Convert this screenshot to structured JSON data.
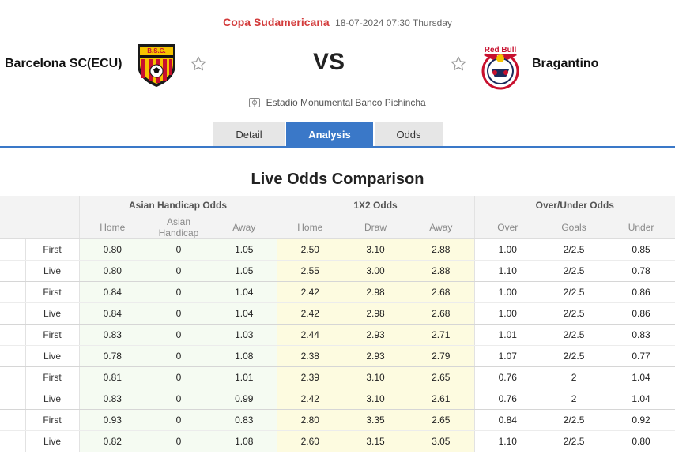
{
  "match": {
    "competition": "Copa Sudamericana",
    "datetime": "18-07-2024 07:30 Thursday",
    "home_team": "Barcelona SC(ECU)",
    "away_team": "Bragantino",
    "vs": "VS",
    "venue": "Estadio Monumental Banco Pichincha",
    "home_logo_text": "B.S.C.",
    "away_logo_text": "RedBull BRAGANTINO"
  },
  "tabs": [
    {
      "label": "Detail"
    },
    {
      "label": "Analysis",
      "active": true
    },
    {
      "label": "Odds"
    }
  ],
  "section_title": "Live Odds Comparison",
  "table": {
    "groups": [
      "Asian Handicap Odds",
      "1X2 Odds",
      "Over/Under Odds"
    ],
    "subheaders": [
      "Home",
      "Asian Handicap",
      "Away",
      "Home",
      "Draw",
      "Away",
      "Over",
      "Goals",
      "Under"
    ],
    "rows": [
      {
        "type": "First",
        "v": [
          "0.80",
          "0",
          "1.05",
          "2.50",
          "3.10",
          "2.88",
          "1.00",
          "2/2.5",
          "0.85"
        ]
      },
      {
        "type": "Live",
        "v": [
          "0.80",
          "0",
          "1.05",
          "2.55",
          "3.00",
          "2.88",
          "1.10",
          "2/2.5",
          "0.78"
        ]
      },
      {
        "type": "First",
        "v": [
          "0.84",
          "0",
          "1.04",
          "2.42",
          "2.98",
          "2.68",
          "1.00",
          "2/2.5",
          "0.86"
        ]
      },
      {
        "type": "Live",
        "v": [
          "0.84",
          "0",
          "1.04",
          "2.42",
          "2.98",
          "2.68",
          "1.00",
          "2/2.5",
          "0.86"
        ]
      },
      {
        "type": "First",
        "v": [
          "0.83",
          "0",
          "1.03",
          "2.44",
          "2.93",
          "2.71",
          "1.01",
          "2/2.5",
          "0.83"
        ]
      },
      {
        "type": "Live",
        "v": [
          "0.78",
          "0",
          "1.08",
          "2.38",
          "2.93",
          "2.79",
          "1.07",
          "2/2.5",
          "0.77"
        ]
      },
      {
        "type": "First",
        "v": [
          "0.81",
          "0",
          "1.01",
          "2.39",
          "3.10",
          "2.65",
          "0.76",
          "2",
          "1.04"
        ]
      },
      {
        "type": "Live",
        "v": [
          "0.83",
          "0",
          "0.99",
          "2.42",
          "3.10",
          "2.61",
          "0.76",
          "2",
          "1.04"
        ]
      },
      {
        "type": "First",
        "v": [
          "0.93",
          "0",
          "0.83",
          "2.80",
          "3.35",
          "2.65",
          "0.84",
          "2/2.5",
          "0.92"
        ]
      },
      {
        "type": "Live",
        "v": [
          "0.82",
          "0",
          "1.08",
          "2.60",
          "3.15",
          "3.05",
          "1.10",
          "2/2.5",
          "0.80"
        ]
      }
    ]
  },
  "colors": {
    "accent": "#3a78c8",
    "competition": "#d33b3b",
    "ah_bg": "#f5fbf2",
    "x12_bg": "#fdfbe0"
  },
  "icons": {
    "favorite": "star-icon",
    "venue": "stadium-icon"
  }
}
